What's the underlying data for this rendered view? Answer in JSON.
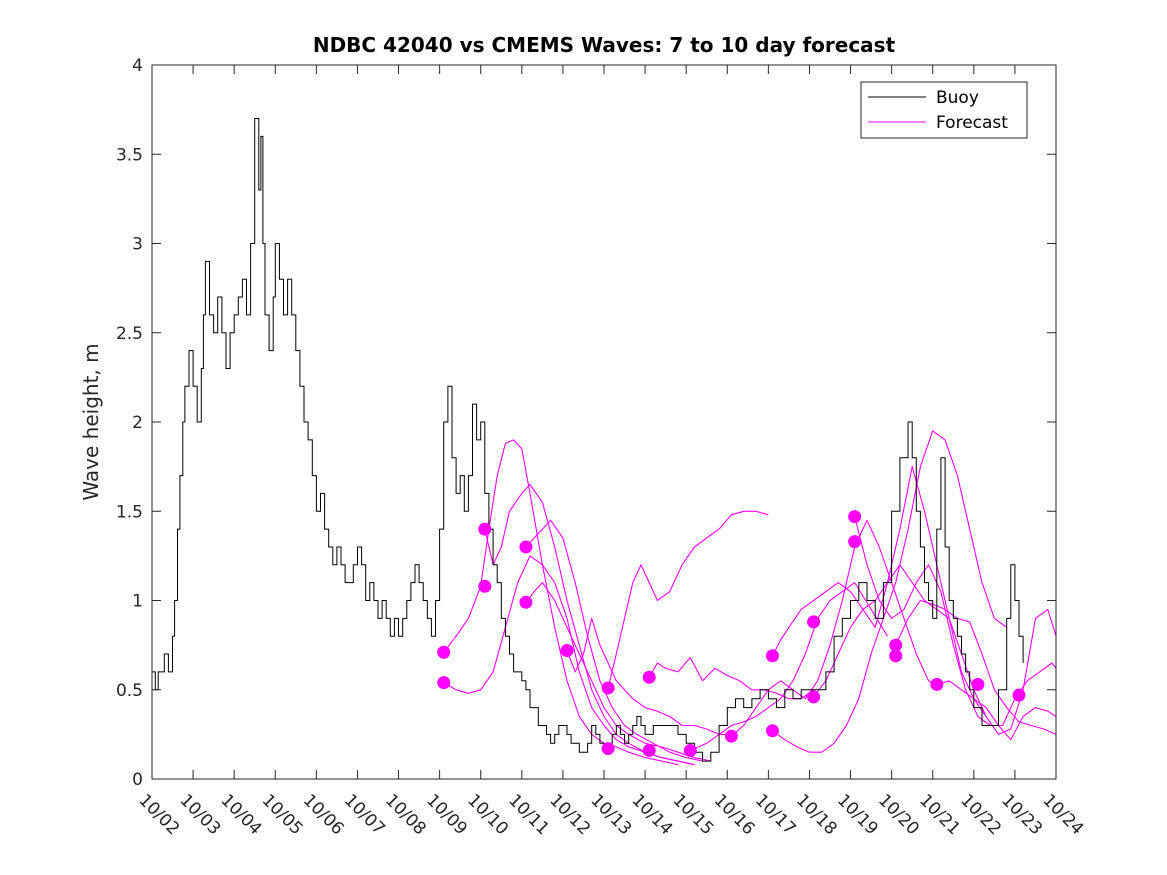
{
  "chart_data": {
    "type": "line",
    "title": "NDBC 42040 vs CMEMS Waves: 7 to 10 day forecast",
    "xlabel": "",
    "ylabel": "Wave height, m",
    "xlim": [
      0,
      22
    ],
    "ylim": [
      0,
      4
    ],
    "x_ticks": [
      0,
      1,
      2,
      3,
      4,
      5,
      6,
      7,
      8,
      9,
      10,
      11,
      12,
      13,
      14,
      15,
      16,
      17,
      18,
      19,
      20,
      21,
      22
    ],
    "x_tick_labels": [
      "10/02",
      "10/03",
      "10/04",
      "10/05",
      "10/06",
      "10/07",
      "10/08",
      "10/09",
      "10/10",
      "10/11",
      "10/12",
      "10/13",
      "10/14",
      "10/15",
      "10/16",
      "10/17",
      "10/18",
      "10/19",
      "10/20",
      "10/21",
      "10/22",
      "10/23",
      "10/24"
    ],
    "y_ticks": [
      0,
      0.5,
      1,
      1.5,
      2,
      2.5,
      3,
      3.5,
      4
    ],
    "y_tick_labels": [
      "0",
      "0.5",
      "1",
      "1.5",
      "2",
      "2.5",
      "3",
      "3.5",
      "4"
    ],
    "x_units": "days since 10/02",
    "legend": {
      "position": "top-right",
      "entries": [
        {
          "label": "Buoy",
          "color": "#000000"
        },
        {
          "label": "Forecast",
          "color": "#ff00ff"
        }
      ]
    },
    "buoy": {
      "name": "Buoy",
      "color": "#000000",
      "x": [
        0,
        0.08,
        0.15,
        0.2,
        0.3,
        0.4,
        0.5,
        0.55,
        0.62,
        0.68,
        0.75,
        0.8,
        0.9,
        1.0,
        1.1,
        1.2,
        1.25,
        1.3,
        1.4,
        1.5,
        1.6,
        1.7,
        1.8,
        1.9,
        2.0,
        2.1,
        2.2,
        2.3,
        2.4,
        2.5,
        2.6,
        2.65,
        2.7,
        2.75,
        2.85,
        2.95,
        3.0,
        3.1,
        3.2,
        3.3,
        3.4,
        3.5,
        3.6,
        3.7,
        3.8,
        3.9,
        4.0,
        4.1,
        4.2,
        4.3,
        4.4,
        4.5,
        4.6,
        4.7,
        4.8,
        4.9,
        5.0,
        5.1,
        5.2,
        5.3,
        5.4,
        5.5,
        5.6,
        5.7,
        5.8,
        5.9,
        6.0,
        6.1,
        6.2,
        6.3,
        6.4,
        6.5,
        6.6,
        6.7,
        6.8,
        6.9,
        7.0,
        7.1,
        7.2,
        7.3,
        7.4,
        7.5,
        7.6,
        7.7,
        7.8,
        7.9,
        8.0,
        8.1,
        8.2,
        8.3,
        8.4,
        8.5,
        8.6,
        8.7,
        8.8,
        8.9,
        9.0,
        9.1,
        9.2,
        9.3,
        9.4,
        9.5,
        9.6,
        9.7,
        9.8,
        9.9,
        10.0,
        10.1,
        10.2,
        10.3,
        10.4,
        10.5,
        10.6,
        10.7,
        10.8,
        10.9,
        11.0,
        11.1,
        11.2,
        11.3,
        11.4,
        11.5,
        11.6,
        11.7,
        11.8,
        11.9,
        12.0,
        12.2,
        12.4,
        12.6,
        12.8,
        13.0,
        13.2,
        13.4,
        13.6,
        13.8,
        14.0,
        14.2,
        14.4,
        14.6,
        14.8,
        15.0,
        15.2,
        15.4,
        15.6,
        15.8,
        16.0,
        16.2,
        16.4,
        16.6,
        16.8,
        17.0,
        17.2,
        17.4,
        17.6,
        17.8,
        18.0,
        18.2,
        18.4,
        18.5,
        18.6,
        18.7,
        18.8,
        18.9,
        19.0,
        19.1,
        19.2,
        19.3,
        19.4,
        19.5,
        19.6,
        19.7,
        19.8,
        19.9,
        20.0,
        20.2,
        20.4,
        20.6,
        20.8,
        20.9,
        21.0,
        21.1,
        21.2
      ],
      "values": [
        0.6,
        0.5,
        0.6,
        0.6,
        0.7,
        0.6,
        0.8,
        1.0,
        1.4,
        1.7,
        2.0,
        2.2,
        2.4,
        2.2,
        2.0,
        2.3,
        2.6,
        2.9,
        2.6,
        2.5,
        2.7,
        2.5,
        2.3,
        2.5,
        2.6,
        2.7,
        2.8,
        2.6,
        3.0,
        3.7,
        3.3,
        3.6,
        3.0,
        2.6,
        2.4,
        2.7,
        3.0,
        2.8,
        2.6,
        2.8,
        2.6,
        2.4,
        2.2,
        2.0,
        1.9,
        1.7,
        1.5,
        1.6,
        1.4,
        1.3,
        1.2,
        1.3,
        1.2,
        1.1,
        1.1,
        1.2,
        1.3,
        1.2,
        1.0,
        1.1,
        1.0,
        0.9,
        1.0,
        0.9,
        0.8,
        0.9,
        0.8,
        0.9,
        1.0,
        1.1,
        1.2,
        1.1,
        1.0,
        0.9,
        0.8,
        1.0,
        1.4,
        2.0,
        2.2,
        1.8,
        1.6,
        1.7,
        1.5,
        1.7,
        2.1,
        1.9,
        2.0,
        1.6,
        1.4,
        1.2,
        1.1,
        0.9,
        0.8,
        0.7,
        0.6,
        0.6,
        0.55,
        0.5,
        0.4,
        0.4,
        0.3,
        0.3,
        0.25,
        0.2,
        0.25,
        0.3,
        0.3,
        0.25,
        0.2,
        0.2,
        0.15,
        0.15,
        0.2,
        0.3,
        0.25,
        0.2,
        0.15,
        0.2,
        0.25,
        0.3,
        0.25,
        0.2,
        0.25,
        0.3,
        0.35,
        0.3,
        0.25,
        0.3,
        0.3,
        0.3,
        0.25,
        0.2,
        0.15,
        0.1,
        0.15,
        0.3,
        0.4,
        0.45,
        0.4,
        0.45,
        0.5,
        0.45,
        0.4,
        0.5,
        0.45,
        0.5,
        0.5,
        0.5,
        0.6,
        0.8,
        0.9,
        1.0,
        1.1,
        1.0,
        0.9,
        1.1,
        1.5,
        1.8,
        2.0,
        1.8,
        1.5,
        1.3,
        1.1,
        1.0,
        0.9,
        1.4,
        1.8,
        1.3,
        1.0,
        0.9,
        0.8,
        0.7,
        0.6,
        0.5,
        0.4,
        0.3,
        0.3,
        0.5,
        0.9,
        1.2,
        1.0,
        0.8,
        0.65
      ]
    },
    "forecast_series": [
      {
        "name": "Forecast",
        "color": "#ff00ff",
        "x": [
          7.1,
          7.4,
          7.7,
          8.0,
          8.2,
          8.4,
          8.6,
          8.8,
          9.0,
          9.2,
          9.5,
          9.8,
          10.1,
          10.4,
          10.7,
          11.0,
          11.3,
          11.6,
          12.0,
          12.4,
          12.8
        ],
        "values": [
          0.71,
          0.8,
          0.9,
          1.08,
          1.4,
          1.7,
          1.88,
          1.9,
          1.85,
          1.6,
          1.2,
          0.85,
          0.55,
          0.35,
          0.25,
          0.2,
          0.18,
          0.15,
          0.12,
          0.1,
          0.08
        ]
      },
      {
        "name": "Forecast",
        "color": "#ff00ff",
        "x": [
          7.1,
          7.4,
          7.7,
          8.0,
          8.3,
          8.6,
          8.9,
          9.2,
          9.5,
          9.8,
          10.1,
          10.4,
          10.7,
          11.0,
          11.3,
          11.6,
          12.0,
          12.4,
          12.8,
          13.2
        ],
        "values": [
          0.54,
          0.5,
          0.48,
          0.5,
          0.6,
          0.85,
          1.1,
          1.25,
          1.2,
          1.1,
          0.9,
          0.6,
          0.4,
          0.3,
          0.22,
          0.18,
          0.15,
          0.12,
          0.1,
          0.08
        ]
      },
      {
        "name": "Forecast",
        "color": "#ff00ff",
        "x": [
          8.1,
          8.3,
          8.5,
          8.7,
          9.0,
          9.2,
          9.5,
          9.8,
          10.1,
          10.4,
          10.7,
          11.0,
          11.3,
          11.6,
          12.0,
          12.4,
          12.8,
          13.2
        ],
        "values": [
          1.4,
          1.2,
          1.3,
          1.5,
          1.6,
          1.65,
          1.55,
          1.3,
          1.0,
          0.75,
          0.5,
          0.35,
          0.25,
          0.2,
          0.15,
          0.12,
          0.1,
          0.08
        ]
      },
      {
        "name": "Forecast",
        "color": "#ff00ff",
        "x": [
          9.1,
          9.3,
          9.5,
          9.7,
          10.0,
          10.3,
          10.6,
          10.9,
          11.2,
          11.5,
          11.8,
          12.2,
          12.6,
          13.0,
          13.4
        ],
        "values": [
          1.3,
          1.35,
          1.4,
          1.45,
          1.35,
          1.1,
          0.8,
          0.55,
          0.4,
          0.3,
          0.25,
          0.2,
          0.15,
          0.12,
          0.1
        ]
      },
      {
        "name": "Forecast",
        "color": "#ff00ff",
        "x": [
          9.1,
          9.3,
          9.5,
          9.8,
          10.1,
          10.4,
          10.7,
          11.0,
          11.3,
          11.6,
          12.0,
          12.4,
          12.8,
          13.2,
          13.6
        ],
        "values": [
          0.99,
          1.05,
          1.1,
          1.0,
          0.85,
          0.7,
          0.55,
          0.4,
          0.3,
          0.25,
          0.2,
          0.18,
          0.15,
          0.12,
          0.1
        ]
      },
      {
        "name": "Forecast",
        "color": "#ff00ff",
        "x": [
          10.1,
          10.3,
          10.5,
          10.7,
          10.9,
          11.1,
          11.3,
          11.5,
          11.7,
          12.0,
          12.3,
          12.6,
          12.9,
          13.2,
          13.5,
          13.8,
          14.1
        ],
        "values": [
          0.72,
          0.6,
          0.7,
          0.9,
          0.75,
          0.65,
          0.55,
          0.5,
          0.45,
          0.4,
          0.38,
          0.35,
          0.3,
          0.3,
          0.28,
          0.25,
          0.25
        ]
      },
      {
        "name": "Forecast",
        "color": "#ff00ff",
        "x": [
          11.1,
          11.3,
          11.5,
          11.7,
          11.9,
          12.1,
          12.3,
          12.6,
          12.9,
          13.2,
          13.5,
          13.8,
          14.1,
          14.4,
          14.7,
          15.0
        ],
        "values": [
          0.51,
          0.7,
          0.9,
          1.1,
          1.2,
          1.1,
          1.0,
          1.05,
          1.2,
          1.3,
          1.35,
          1.4,
          1.48,
          1.5,
          1.5,
          1.48
        ]
      },
      {
        "name": "Forecast",
        "color": "#ff00ff",
        "x": [
          12.1,
          12.3,
          12.5,
          12.8,
          13.1,
          13.4,
          13.7,
          14.0,
          14.3,
          14.6,
          14.9,
          15.2,
          15.5,
          15.8,
          16.1
        ],
        "values": [
          0.57,
          0.65,
          0.62,
          0.6,
          0.68,
          0.55,
          0.62,
          0.58,
          0.55,
          0.5,
          0.5,
          0.48,
          0.45,
          0.45,
          0.5
        ]
      },
      {
        "name": "Forecast",
        "color": "#ff00ff",
        "x": [
          13.1,
          13.3,
          13.5,
          13.8,
          14.1,
          14.4,
          14.7,
          15.0,
          15.3,
          15.6,
          15.9,
          16.2,
          16.5,
          16.8,
          17.1,
          17.5,
          17.9
        ],
        "values": [
          0.16,
          0.18,
          0.2,
          0.25,
          0.3,
          0.32,
          0.35,
          0.4,
          0.45,
          0.55,
          0.7,
          0.9,
          1.0,
          1.05,
          1.1,
          0.95,
          0.8
        ]
      },
      {
        "name": "Forecast",
        "color": "#ff00ff",
        "x": [
          14.1,
          14.4,
          14.7,
          15.0,
          15.3,
          15.6,
          15.9,
          16.2,
          16.5,
          16.8,
          17.1,
          17.4,
          17.7,
          18.0,
          18.3,
          18.6,
          18.9,
          19.2
        ],
        "values": [
          0.24,
          0.3,
          0.4,
          0.5,
          0.55,
          0.5,
          0.45,
          0.55,
          0.75,
          1.0,
          1.3,
          1.45,
          1.3,
          1.1,
          0.9,
          0.7,
          0.55,
          0.5
        ]
      },
      {
        "name": "Forecast",
        "color": "#ff00ff",
        "x": [
          15.1,
          15.3,
          15.5,
          15.8,
          16.1,
          16.4,
          16.7,
          17.0,
          17.3,
          17.6,
          17.9,
          18.2,
          18.5,
          18.8,
          19.1,
          19.4,
          19.7,
          20.0,
          20.3
        ],
        "values": [
          0.69,
          0.78,
          0.85,
          0.95,
          1.0,
          1.05,
          1.1,
          1.05,
          0.95,
          0.85,
          1.1,
          1.4,
          1.75,
          1.5,
          1.2,
          0.9,
          0.6,
          0.45,
          0.35
        ]
      },
      {
        "name": "Forecast",
        "color": "#ff00ff",
        "x": [
          15.1,
          15.4,
          15.7,
          16.0,
          16.3,
          16.6,
          16.9,
          17.2,
          17.5,
          17.8,
          18.1,
          18.4,
          18.7,
          19.0,
          19.3,
          19.6,
          19.9,
          20.2,
          20.5,
          20.8
        ],
        "values": [
          0.27,
          0.22,
          0.18,
          0.15,
          0.15,
          0.2,
          0.3,
          0.45,
          0.7,
          0.9,
          1.1,
          1.4,
          1.75,
          1.95,
          1.9,
          1.7,
          1.4,
          1.1,
          0.9,
          0.85
        ]
      },
      {
        "name": "Forecast",
        "color": "#ff00ff",
        "x": [
          16.1,
          16.4,
          16.7,
          17.0,
          17.3,
          17.6,
          17.9,
          18.2,
          18.5,
          18.8,
          19.1,
          19.4,
          19.7,
          20.0,
          20.3,
          20.6,
          20.9,
          21.2,
          21.5,
          21.8,
          22.0
        ],
        "values": [
          0.46,
          0.55,
          0.7,
          0.85,
          0.95,
          1.0,
          1.1,
          1.2,
          1.1,
          1.0,
          0.95,
          0.9,
          0.7,
          0.5,
          0.35,
          0.25,
          0.28,
          0.5,
          0.9,
          0.95,
          0.8
        ]
      },
      {
        "name": "Forecast",
        "color": "#ff00ff",
        "x": [
          17.1,
          17.4,
          17.7,
          18.0,
          18.3,
          18.6,
          18.9,
          19.2,
          19.5,
          19.8,
          20.1,
          20.4,
          20.7,
          21.0,
          21.3,
          21.6,
          21.9,
          22.0
        ],
        "values": [
          1.47,
          1.2,
          1.0,
          0.9,
          0.95,
          1.1,
          1.2,
          1.05,
          0.75,
          0.5,
          0.35,
          0.3,
          0.3,
          0.45,
          0.55,
          0.6,
          0.65,
          0.62
        ]
      },
      {
        "name": "Forecast",
        "color": "#ff00ff",
        "x": [
          18.1,
          18.4,
          18.7,
          19.0,
          19.3,
          19.6,
          19.9,
          20.2,
          20.5,
          20.8,
          21.1,
          21.4,
          21.7,
          22.0
        ],
        "values": [
          0.75,
          0.9,
          1.0,
          0.98,
          0.95,
          0.9,
          0.88,
          0.7,
          0.5,
          0.4,
          0.32,
          0.3,
          0.28,
          0.25
        ]
      },
      {
        "name": "Forecast",
        "color": "#ff00ff",
        "x": [
          19.1,
          19.4,
          19.7,
          20.0,
          20.3,
          20.6,
          20.9,
          21.2,
          21.5,
          21.8,
          22.0
        ],
        "values": [
          0.53,
          0.55,
          0.5,
          0.45,
          0.4,
          0.3,
          0.22,
          0.35,
          0.4,
          0.38,
          0.35
        ]
      }
    ],
    "forecast_markers": {
      "name": "Forecast start",
      "color": "#ff00ff",
      "x": [
        7.1,
        7.1,
        8.1,
        8.1,
        9.1,
        9.1,
        10.1,
        11.1,
        11.1,
        12.1,
        12.1,
        13.1,
        14.1,
        15.1,
        15.1,
        16.1,
        16.1,
        17.1,
        17.1,
        18.1,
        18.1,
        19.1,
        20.1,
        21.1
      ],
      "values": [
        0.71,
        0.54,
        1.4,
        1.08,
        1.3,
        0.99,
        0.72,
        0.51,
        0.17,
        0.57,
        0.16,
        0.16,
        0.24,
        0.69,
        0.27,
        0.88,
        0.46,
        1.47,
        1.33,
        0.75,
        0.69,
        0.53,
        0.53,
        0.47
      ]
    }
  }
}
